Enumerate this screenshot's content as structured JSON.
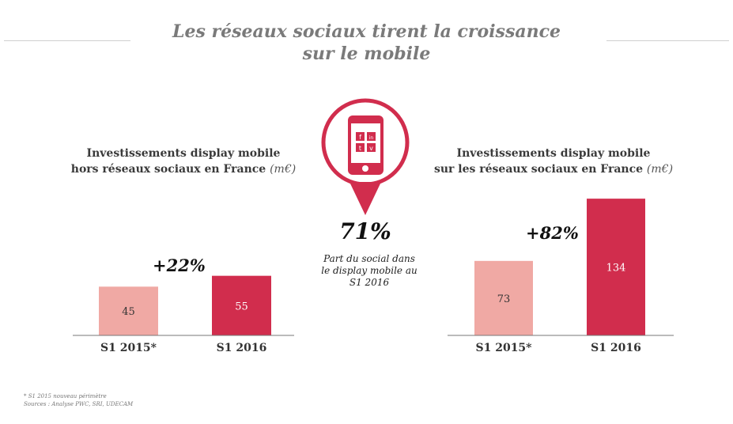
{
  "title": {
    "line1": "Les réseaux sociaux tirent la croissance",
    "line2": "sur le mobile"
  },
  "colors": {
    "accent": "#d12d4d",
    "light_bar": "#f0a9a4",
    "title_grey": "#7a7a7a"
  },
  "icon": "smartphone-social-pin-icon",
  "phone_tiles": [
    "f",
    "in",
    "t",
    "v"
  ],
  "center_stat": {
    "value": "71%",
    "caption_line1": "Part du social dans",
    "caption_line2": "le display mobile au",
    "caption_line3": "S1 2016"
  },
  "chart_data": [
    {
      "type": "bar",
      "title_line1": "Investissements display mobile",
      "title_line2": "hors réseaux sociaux en France",
      "unit": "(m€)",
      "categories": [
        "S1 2015*",
        "S1 2016"
      ],
      "values": [
        45,
        55
      ],
      "value_labels": [
        "45",
        "55"
      ],
      "growth": "+22%",
      "ylim": [
        0,
        80
      ]
    },
    {
      "type": "bar",
      "title_line1": "Investissements display mobile",
      "title_line2": "sur les réseaux sociaux en France",
      "unit": "(m€)",
      "categories": [
        "S1 2015*",
        "S1 2016"
      ],
      "values": [
        73,
        134
      ],
      "value_labels": [
        "73",
        "134"
      ],
      "growth": "+82%",
      "ylim": [
        0,
        140
      ]
    }
  ],
  "footnote": {
    "line1": "* S1 2015 nouveau périmètre",
    "line2": "Sources : Analyse PWC, SRI, UDECAM"
  }
}
